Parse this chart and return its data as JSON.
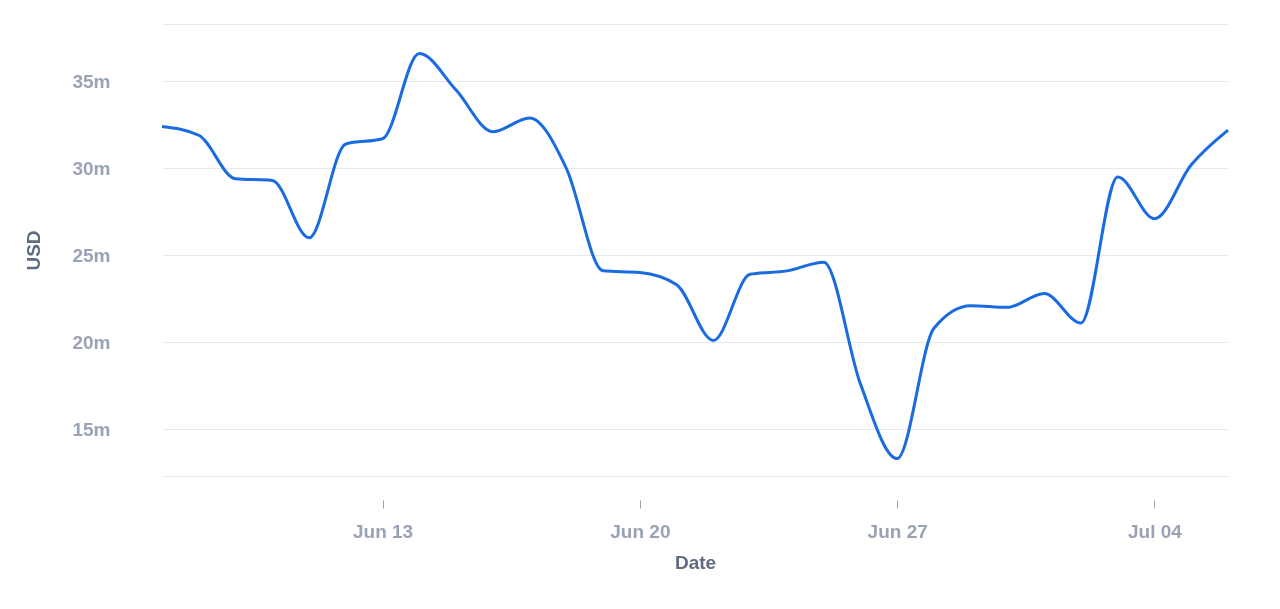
{
  "chart_data": {
    "type": "line",
    "xlabel": "Date",
    "ylabel": "USD",
    "x": [
      "--06-07",
      "--06-08",
      "--06-09",
      "--06-10",
      "--06-11",
      "--06-12",
      "--06-13",
      "--06-14",
      "--06-15",
      "--06-16",
      "--06-17",
      "--06-18",
      "--06-19",
      "--06-20",
      "--06-21",
      "--06-22",
      "--06-23",
      "--06-24",
      "--06-25",
      "--06-26",
      "--06-27",
      "--06-28",
      "--06-29",
      "--06-30",
      "--07-01",
      "--07-02",
      "--07-03",
      "--07-04",
      "--07-05",
      "--07-06"
    ],
    "series": [
      {
        "color": "#1a6be0",
        "values": [
          32.4,
          31.9,
          29.4,
          29.3,
          26.0,
          31.4,
          31.7,
          36.6,
          34.5,
          32.1,
          32.9,
          30.0,
          24.1,
          24.0,
          23.3,
          20.1,
          23.9,
          24.1,
          24.6,
          17.6,
          13.3,
          20.8,
          22.1,
          22.0,
          22.8,
          21.1,
          29.5,
          27.1,
          30.2,
          32.2
        ]
      }
    ],
    "xlim": [
      "--06-07",
      "--07-06"
    ],
    "xticks": [
      {
        "value": "--06-13",
        "label": "Jun 13"
      },
      {
        "value": "--06-20",
        "label": "Jun 20"
      },
      {
        "value": "--06-27",
        "label": "Jun 27"
      },
      {
        "value": "--07-04",
        "label": "Jul 04"
      }
    ],
    "ylim": [
      12.3,
      38.3
    ],
    "yticks": [
      {
        "value": 15,
        "label": "15m"
      },
      {
        "value": 20,
        "label": "20m"
      },
      {
        "value": 25,
        "label": "25m"
      },
      {
        "value": 30,
        "label": "30m"
      },
      {
        "value": 35,
        "label": "35m"
      },
      {
        "value": 12.3,
        "label": null
      },
      {
        "value": 38.3,
        "label": null
      }
    ],
    "grid": "y",
    "marker": "none",
    "line_style": "solid"
  }
}
